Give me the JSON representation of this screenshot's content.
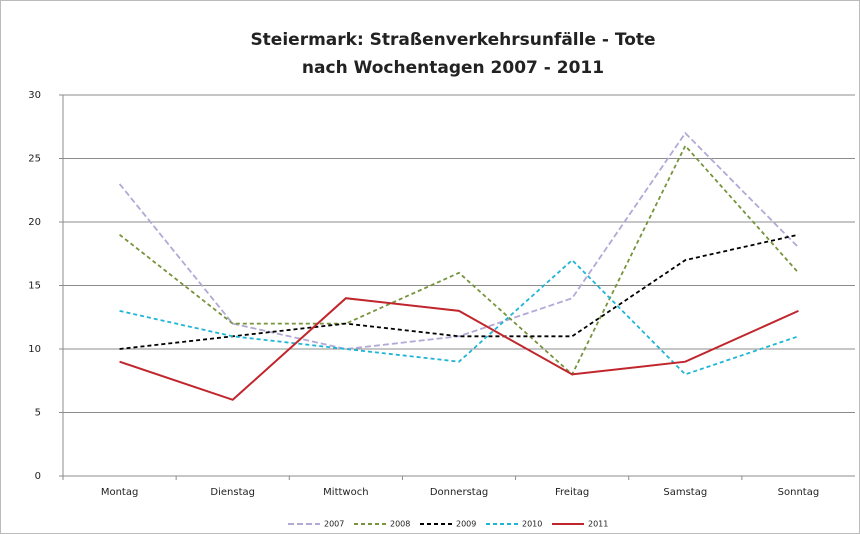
{
  "chart_data": {
    "type": "line",
    "title": [
      "Steiermark: Straßenverkehrsunfälle - Tote",
      "nach Wochentagen 2007 - 2011"
    ],
    "categories": [
      "Montag",
      "Dienstag",
      "Mittwoch",
      "Donnerstag",
      "Freitag",
      "Samstag",
      "Sonntag"
    ],
    "series": [
      {
        "name": "2007",
        "color": "#b3a9d6",
        "style": "dashed",
        "values": [
          23,
          12,
          10,
          11,
          14,
          27,
          18
        ]
      },
      {
        "name": "2008",
        "color": "#77933c",
        "style": "dashed",
        "values": [
          19,
          12,
          12,
          16,
          8,
          26,
          16
        ]
      },
      {
        "name": "2009",
        "color": "#000000",
        "style": "dashed",
        "values": [
          10,
          11,
          12,
          11,
          11,
          17,
          19
        ]
      },
      {
        "name": "2010",
        "color": "#1fb5d6",
        "style": "dashed",
        "values": [
          13,
          11,
          10,
          9,
          17,
          8,
          11
        ]
      },
      {
        "name": "2011",
        "color": "#c0262c",
        "style": "solid",
        "values": [
          9,
          6,
          14,
          13,
          8,
          9,
          13
        ]
      }
    ],
    "ylim": [
      0,
      30
    ],
    "yticks": [
      0,
      5,
      10,
      15,
      20,
      25,
      30
    ],
    "grid": true,
    "legend": "bottom"
  }
}
